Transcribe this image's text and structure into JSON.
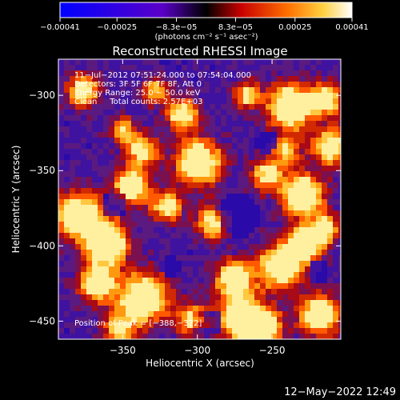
{
  "chart_data": {
    "type": "heatmap",
    "title": "Reconstructed RHESSI Image",
    "xlabel": "Heliocentric X (arcsec)",
    "ylabel": "Heliocentric Y (arcsec)",
    "xlim": [
      -393,
      -204
    ],
    "ylim": [
      -462,
      -276
    ],
    "x_ticks": [
      -350,
      -300,
      -250
    ],
    "y_ticks": [
      -300,
      -350,
      -400,
      -450
    ],
    "x_tick_labels": [
      "−350",
      "−300",
      "−250"
    ],
    "y_tick_labels": [
      "−300",
      "−350",
      "−400",
      "−450"
    ],
    "colorbar": {
      "ticks": [
        -0.00041,
        -0.00025,
        -8.3e-05,
        8.3e-05,
        0.00025,
        0.00041
      ],
      "tick_labels": [
        "−0.00041",
        "−0.00025",
        "−8.3e−05",
        "8.3e−05",
        "0.00025",
        "0.00041"
      ],
      "unit_label": "(photons cm⁻² s⁻¹ asec⁻²)"
    },
    "annotations": [
      "11−Jul−2012 07:51:24.000 to 07:54:04.000",
      "Detectors: 3F 5F 6F 7F 8F, Att 0",
      "Energy Range: 25.0 − 50.0 keV",
      "Clean     Total counts: 2.57E+03"
    ],
    "peak_label": "Position of Peak = [−388,−372]",
    "grid": false,
    "colors": {
      "background": "#000000",
      "text": "#ffffff"
    }
  },
  "footer": {
    "timestamp": "12−May−2022 12:49"
  }
}
